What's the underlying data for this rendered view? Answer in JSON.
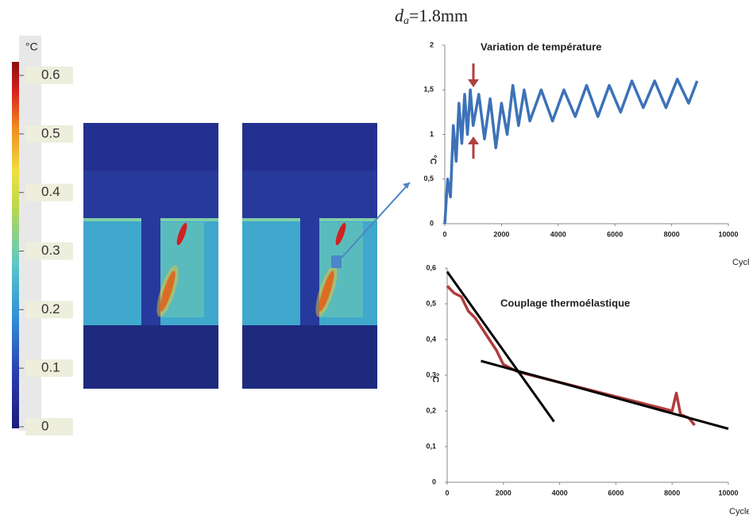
{
  "heading": {
    "symbol": "d",
    "subscript": "a",
    "text": "=1.8mm"
  },
  "colorbar": {
    "unit": "°C",
    "ticks": [
      0,
      0.1,
      0.2,
      0.3,
      0.4,
      0.5,
      0.6
    ],
    "lim": [
      0,
      0.6
    ]
  },
  "chart_data": [
    {
      "type": "line",
      "title": "Variation de température",
      "y_label": "°C",
      "x_label": "Cycle",
      "color": "#3c72b8",
      "x": [
        0,
        100,
        200,
        300,
        400,
        500,
        600,
        700,
        800,
        900,
        1000,
        1200,
        1400,
        1600,
        1800,
        2000,
        2200,
        2400,
        2600,
        2800,
        3000,
        3400,
        3800,
        4200,
        4600,
        5000,
        5400,
        5800,
        6200,
        6600,
        7000,
        7400,
        7800,
        8200,
        8600,
        8900
      ],
      "values": [
        0,
        0.5,
        0.3,
        1.1,
        0.7,
        1.35,
        0.9,
        1.45,
        1.0,
        1.5,
        1.1,
        1.45,
        0.95,
        1.4,
        0.85,
        1.35,
        1.0,
        1.55,
        1.1,
        1.5,
        1.15,
        1.5,
        1.15,
        1.5,
        1.2,
        1.55,
        1.2,
        1.55,
        1.25,
        1.6,
        1.3,
        1.6,
        1.3,
        1.62,
        1.35,
        1.6
      ],
      "xlim": [
        0,
        10000
      ],
      "xticks": [
        0,
        2000,
        4000,
        6000,
        8000,
        10000
      ],
      "ylim": [
        0,
        2
      ],
      "yticks": [
        0,
        {
          "value": 0.5,
          "label": "0,5"
        },
        1,
        {
          "value": 1.5,
          "label": "1,5"
        },
        2
      ]
    },
    {
      "type": "line",
      "title": "Couplage thermoélastique",
      "y_label": "°C",
      "x_label": "Cycle",
      "color": "#b23b3b",
      "x": [
        0,
        250,
        500,
        750,
        1000,
        1250,
        1500,
        1750,
        2000,
        2500,
        3000,
        3500,
        4000,
        4500,
        5000,
        5500,
        6000,
        6500,
        7000,
        7500,
        8000,
        8150,
        8300,
        8600,
        8800
      ],
      "values": [
        0.55,
        0.53,
        0.52,
        0.48,
        0.46,
        0.43,
        0.4,
        0.37,
        0.33,
        0.31,
        0.3,
        0.29,
        0.28,
        0.27,
        0.26,
        0.25,
        0.24,
        0.23,
        0.22,
        0.21,
        0.2,
        0.25,
        0.19,
        0.18,
        0.16
      ],
      "fit_lines": [
        {
          "x": [
            0,
            3800
          ],
          "y": [
            0.59,
            0.17
          ]
        },
        {
          "x": [
            1200,
            10000
          ],
          "y": [
            0.34,
            0.15
          ]
        }
      ],
      "xlim": [
        0,
        10000
      ],
      "xticks": [
        0,
        2000,
        4000,
        6000,
        8000,
        10000
      ],
      "ylim": [
        0,
        0.6
      ],
      "yticks": [
        0,
        {
          "value": 0.1,
          "label": "0,1"
        },
        {
          "value": 0.2,
          "label": "0,2"
        },
        {
          "value": 0.3,
          "label": "0,3"
        },
        {
          "value": 0.4,
          "label": "0,4"
        },
        {
          "value": 0.5,
          "label": "0,5"
        },
        {
          "value": 0.6,
          "label": "0,6"
        }
      ]
    }
  ]
}
